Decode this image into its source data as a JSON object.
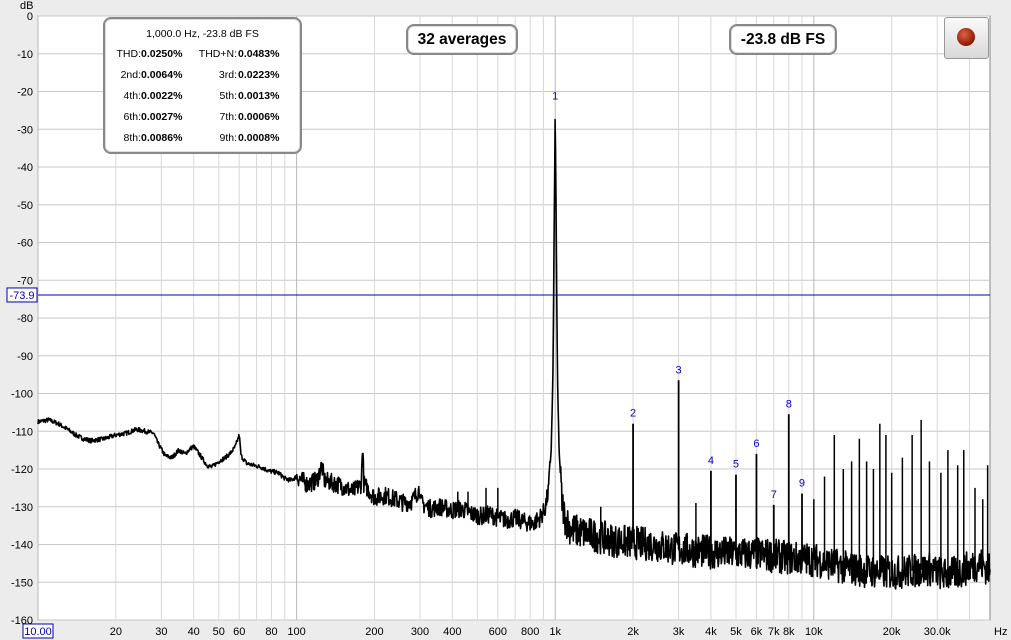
{
  "chart_data": {
    "type": "line",
    "title": "",
    "xlabel": "Hz",
    "ylabel": "dB",
    "x_scale": "log",
    "xlim": [
      10,
      48000
    ],
    "ylim": [
      -160,
      0
    ],
    "y_ticks": [
      0,
      -10,
      -20,
      -30,
      -40,
      -50,
      -60,
      -70,
      -80,
      -90,
      -100,
      -110,
      -120,
      -130,
      -140,
      -150,
      -160
    ],
    "y_tick_labels": [
      "0",
      "-10",
      "-20",
      "-30",
      "-40",
      "-50",
      "-60",
      "-70",
      "-80",
      "-90",
      "-100",
      "-110",
      "-120",
      "-130",
      "-140",
      "-150",
      "-160"
    ],
    "x_ticks": [
      20,
      30,
      40,
      50,
      60,
      80,
      100,
      200,
      300,
      400,
      600,
      800,
      1000,
      2000,
      3000,
      4000,
      5000,
      6000,
      7000,
      8000,
      10000,
      20000,
      30000
    ],
    "x_tick_labels": [
      "20",
      "30",
      "40",
      "50",
      "60",
      "80",
      "100",
      "200",
      "300",
      "400",
      "600",
      "800",
      "1k",
      "2k",
      "3k",
      "4k",
      "5k",
      "6k",
      "7k",
      "8k",
      "10k",
      "20k",
      "30.0k"
    ],
    "x_start_label": "10.00",
    "cursor_value": -73.9,
    "cursor_label": "-73.9",
    "grid": true,
    "line_color": "#000000",
    "cursor_color": "#0000b0",
    "harmonic_color": "#0000cc",
    "harmonics": [
      {
        "label": "1",
        "x": 1000,
        "y": -24
      },
      {
        "label": "2",
        "x": 2000,
        "y": -108
      },
      {
        "label": "3",
        "x": 3000,
        "y": -96.5
      },
      {
        "label": "4",
        "x": 4000,
        "y": -120.5
      },
      {
        "label": "5",
        "x": 5000,
        "y": -121.5
      },
      {
        "label": "6",
        "x": 6000,
        "y": -116
      },
      {
        "label": "7",
        "x": 7000,
        "y": -129.5
      },
      {
        "label": "8",
        "x": 8000,
        "y": -105.5
      },
      {
        "label": "9",
        "x": 9000,
        "y": -126.5
      }
    ],
    "series": [
      {
        "values": [
          [
            10,
            -107.5
          ],
          [
            11,
            -107
          ],
          [
            12,
            -108
          ],
          [
            13,
            -109.5
          ],
          [
            14,
            -111
          ],
          [
            15,
            -112
          ],
          [
            16,
            -112.5
          ],
          [
            18,
            -112
          ],
          [
            20,
            -111
          ],
          [
            22,
            -110.5
          ],
          [
            24,
            -109.5
          ],
          [
            26,
            -110
          ],
          [
            28,
            -110.5
          ],
          [
            29,
            -113
          ],
          [
            31,
            -116.5
          ],
          [
            33,
            -117
          ],
          [
            35,
            -115
          ],
          [
            37,
            -116
          ],
          [
            39,
            -114.5
          ],
          [
            40,
            -114
          ],
          [
            42,
            -116
          ],
          [
            45,
            -119
          ],
          [
            47,
            -119.5
          ],
          [
            50,
            -118
          ],
          [
            53,
            -117
          ],
          [
            56,
            -115.5
          ],
          [
            58,
            -114
          ],
          [
            60,
            -111
          ],
          [
            61,
            -116.5
          ],
          [
            64,
            -118.5
          ],
          [
            68,
            -119
          ],
          [
            73,
            -119.5
          ],
          [
            78,
            -120.5
          ],
          [
            85,
            -121
          ],
          [
            90,
            -122.5
          ],
          [
            95,
            -123
          ],
          [
            100,
            -122
          ],
          [
            110,
            -124
          ],
          [
            120,
            -123
          ],
          [
            125,
            -119
          ],
          [
            128,
            -123
          ],
          [
            135,
            -123.5
          ],
          [
            150,
            -124.5
          ],
          [
            165,
            -126
          ],
          [
            178,
            -124
          ],
          [
            180,
            -113
          ],
          [
            182,
            -124
          ],
          [
            200,
            -127.5
          ],
          [
            220,
            -127
          ],
          [
            240,
            -128
          ],
          [
            260,
            -129
          ],
          [
            280,
            -128.5
          ],
          [
            300,
            -125
          ],
          [
            302,
            -129
          ],
          [
            330,
            -130.5
          ],
          [
            360,
            -130
          ],
          [
            400,
            -131
          ],
          [
            420,
            -130.5
          ],
          [
            450,
            -131
          ],
          [
            480,
            -132
          ],
          [
            520,
            -132.5
          ],
          [
            560,
            -132
          ],
          [
            600,
            -133
          ],
          [
            650,
            -133.5
          ],
          [
            700,
            -133
          ],
          [
            760,
            -134
          ],
          [
            820,
            -134.5
          ],
          [
            870,
            -133
          ],
          [
            910,
            -131
          ],
          [
            940,
            -126
          ],
          [
            965,
            -115
          ],
          [
            980,
            -95
          ],
          [
            990,
            -60
          ],
          [
            1000,
            -24
          ],
          [
            1010,
            -60
          ],
          [
            1020,
            -95
          ],
          [
            1035,
            -115
          ],
          [
            1060,
            -128
          ],
          [
            1090,
            -133
          ],
          [
            1150,
            -136
          ],
          [
            1300,
            -137
          ],
          [
            1500,
            -138
          ],
          [
            1700,
            -139
          ],
          [
            2000,
            -139.5
          ],
          [
            2400,
            -140
          ],
          [
            2800,
            -141
          ],
          [
            3300,
            -141.5
          ],
          [
            4000,
            -142
          ],
          [
            5000,
            -142.5
          ],
          [
            6000,
            -142.5
          ],
          [
            7000,
            -143
          ],
          [
            8000,
            -143.5
          ],
          [
            10000,
            -144
          ],
          [
            13000,
            -146
          ],
          [
            16000,
            -147
          ],
          [
            20000,
            -147.5
          ],
          [
            24000,
            -147
          ],
          [
            28000,
            -146.5
          ],
          [
            32000,
            -148
          ],
          [
            36000,
            -147.5
          ],
          [
            40000,
            -146
          ],
          [
            44000,
            -145
          ],
          [
            48000,
            -147
          ]
        ]
      }
    ],
    "spurs": [
      {
        "x": 180,
        "y": -113
      },
      {
        "x": 300,
        "y": -125
      },
      {
        "x": 420,
        "y": -126
      },
      {
        "x": 460,
        "y": -126
      },
      {
        "x": 540,
        "y": -125
      },
      {
        "x": 600,
        "y": -125
      },
      {
        "x": 1500,
        "y": -130
      },
      {
        "x": 3500,
        "y": -129
      },
      {
        "x": 10000,
        "y": -128
      },
      {
        "x": 11000,
        "y": -122
      },
      {
        "x": 12000,
        "y": -111
      },
      {
        "x": 13000,
        "y": -120
      },
      {
        "x": 14000,
        "y": -118
      },
      {
        "x": 15000,
        "y": -112
      },
      {
        "x": 16000,
        "y": -118
      },
      {
        "x": 17000,
        "y": -120
      },
      {
        "x": 18000,
        "y": -108
      },
      {
        "x": 19000,
        "y": -111
      },
      {
        "x": 20000,
        "y": -121
      },
      {
        "x": 22000,
        "y": -117
      },
      {
        "x": 24000,
        "y": -111
      },
      {
        "x": 26000,
        "y": -107
      },
      {
        "x": 28000,
        "y": -118
      },
      {
        "x": 31000,
        "y": -121
      },
      {
        "x": 33000,
        "y": -115
      },
      {
        "x": 36000,
        "y": -119
      },
      {
        "x": 38000,
        "y": -115
      },
      {
        "x": 42000,
        "y": -125
      },
      {
        "x": 45000,
        "y": -128
      },
      {
        "x": 47000,
        "y": -119
      }
    ]
  },
  "stats": {
    "title": "1,000.0 Hz, -23.8 dB FS",
    "rows": [
      {
        "l1": "THD:",
        "v1": "0.0250%",
        "l2": "THD+N:",
        "v2": "0.0483%"
      },
      {
        "l1": "2nd:",
        "v1": "0.0064%",
        "l2": "3rd:",
        "v2": "0.0223%"
      },
      {
        "l1": "4th:",
        "v1": "0.0022%",
        "l2": "5th:",
        "v2": "0.0013%"
      },
      {
        "l1": "6th:",
        "v1": "0.0027%",
        "l2": "7th:",
        "v2": "0.0006%"
      },
      {
        "l1": "8th:",
        "v1": "0.0086%",
        "l2": "9th:",
        "v2": "0.0008%"
      }
    ]
  },
  "averages_text": "32 averages",
  "level_text": "-23.8 dB FS",
  "record_icon": "record-icon"
}
